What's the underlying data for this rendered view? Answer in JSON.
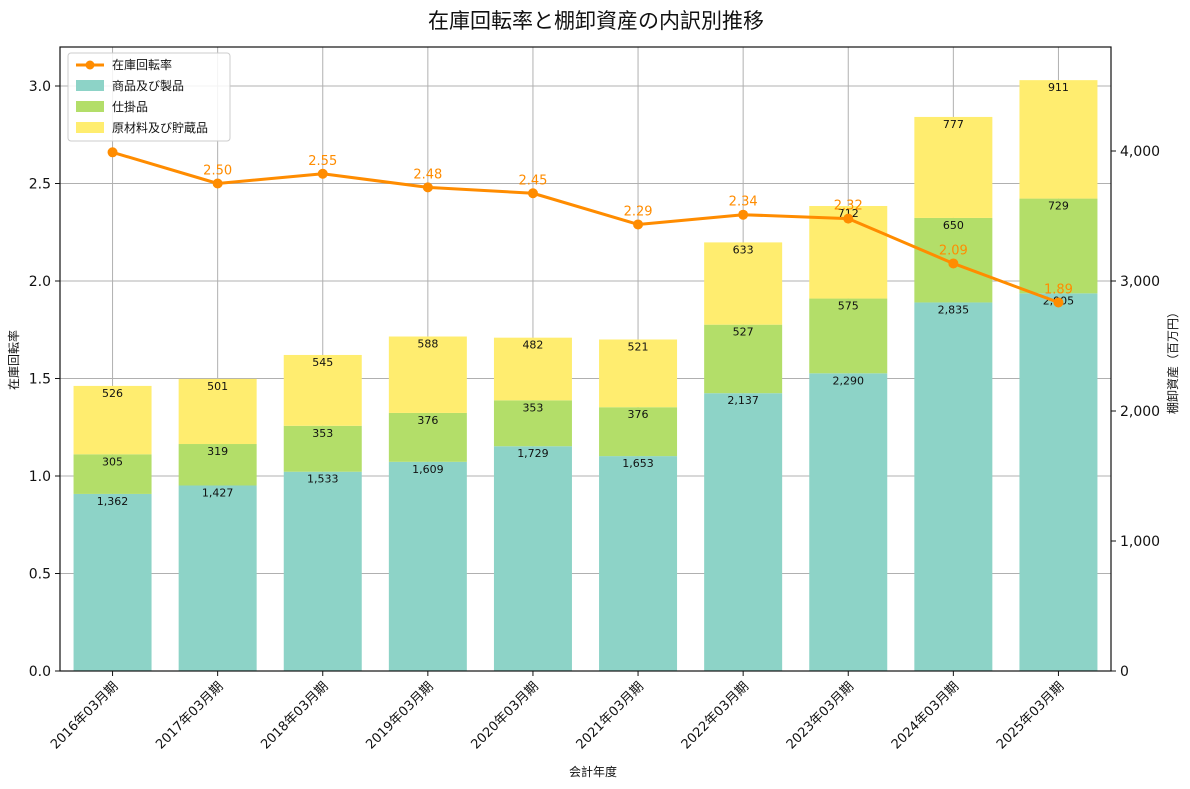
{
  "chart_data": {
    "type": "bar",
    "title": "在庫回転率と棚卸資産の内訳別推移",
    "xlabel": "会計年度",
    "ylabel_left": "在庫回転率",
    "ylabel_right": "棚卸資産（百万円）",
    "categories": [
      "2016年03月期",
      "2017年03月期",
      "2018年03月期",
      "2019年03月期",
      "2020年03月期",
      "2021年03月期",
      "2022年03月期",
      "2023年03月期",
      "2024年03月期",
      "2025年03月期"
    ],
    "stacked_series": [
      {
        "name": "商品及び製品",
        "color": "#8dd3c7",
        "values": [
          1362,
          1427,
          1533,
          1609,
          1729,
          1653,
          2137,
          2290,
          2835,
          2905
        ]
      },
      {
        "name": "仕掛品",
        "color": "#b3de69",
        "values": [
          305,
          319,
          353,
          376,
          353,
          376,
          527,
          575,
          650,
          729
        ]
      },
      {
        "name": "原材料及び貯蔵品",
        "color": "#ffed6f",
        "values": [
          526,
          501,
          545,
          588,
          482,
          521,
          633,
          712,
          777,
          911
        ]
      }
    ],
    "line_series": {
      "name": "在庫回転率",
      "color": "#ff8c00",
      "values": [
        2.66,
        2.5,
        2.55,
        2.48,
        2.45,
        2.29,
        2.34,
        2.32,
        2.09,
        1.89
      ]
    },
    "line_labels": [
      "",
      "2.50",
      "2.55",
      "2.48",
      "2.45",
      "2.29",
      "2.34",
      "2.32",
      "2.09",
      "1.89"
    ],
    "bar_labels": [
      [
        "1,362",
        "1,427",
        "1,533",
        "1,609",
        "1,729",
        "1,653",
        "2,137",
        "2,290",
        "2,835",
        "2,905"
      ],
      [
        "305",
        "319",
        "353",
        "376",
        "353",
        "376",
        "527",
        "575",
        "650",
        "729"
      ],
      [
        "526",
        "501",
        "545",
        "588",
        "482",
        "521",
        "633",
        "712",
        "777",
        "911"
      ]
    ],
    "ylim_left": [
      0,
      3.2
    ],
    "ylim_right": [
      0,
      4800
    ],
    "yticks_left": [
      "0.0",
      "0.5",
      "1.0",
      "1.5",
      "2.0",
      "2.5",
      "3.0"
    ],
    "yticks_left_values": [
      0,
      0.5,
      1.0,
      1.5,
      2.0,
      2.5,
      3.0
    ],
    "yticks_right": [
      "0",
      "1,000",
      "2,000",
      "3,000",
      "4,000"
    ],
    "yticks_right_values": [
      0,
      1000,
      2000,
      3000,
      4000
    ],
    "grid": true,
    "legend_position": "top-left"
  }
}
